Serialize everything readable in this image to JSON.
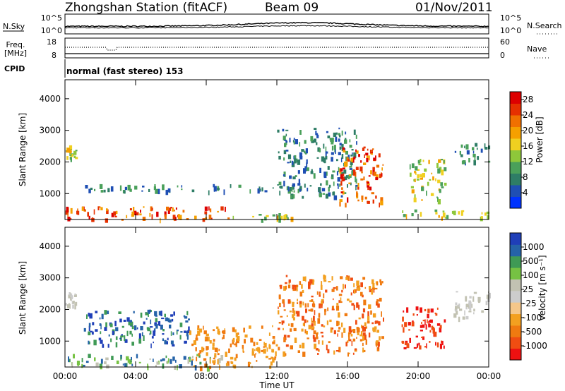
{
  "header": {
    "title": "Zhongshan Station (fitACF)",
    "beam": "Beam 09",
    "date": "01/Nov/2011"
  },
  "panels": {
    "nsky_label": "N.Sky",
    "nsearch_label": "N.Search",
    "noise_ticks": [
      "10^5",
      "10^0"
    ],
    "freq_label_1": "Freq.",
    "freq_label_2": "[MHz]",
    "freq_ticks": [
      "18",
      "8"
    ],
    "nave_label": "Nave",
    "nave_ticks": [
      "60",
      "0"
    ],
    "cpid_label": "CPID",
    "cpid_text": "normal (fast stereo) 153"
  },
  "colors": {
    "power": [
      "#0033ff",
      "#1f4fb4",
      "#2e7d66",
      "#4aa05a",
      "#8ec73a",
      "#f0d020",
      "#f5a000",
      "#f07000",
      "#e63000",
      "#dd0000"
    ],
    "velocity": [
      "#ee1111",
      "#f04d12",
      "#f07a10",
      "#f3a020",
      "#f5c78a",
      "#cccccc",
      "#c2c2b2",
      "#76c243",
      "#3f9a55",
      "#2563a8",
      "#1f3fb8"
    ]
  },
  "chart_data": [
    {
      "type": "heatmap",
      "title": "",
      "xlabel": "",
      "ylabel": "Slant Range [km]",
      "ylim": [
        180,
        4600
      ],
      "xlim": [
        "00:00",
        "24:00"
      ],
      "y_ticks": [
        1000,
        2000,
        3000,
        4000
      ],
      "colorbar": {
        "label": "Power [dB]",
        "ticks": [
          4,
          8,
          12,
          16,
          20,
          24,
          28
        ],
        "range": [
          0,
          30
        ]
      },
      "echo_regions": [
        {
          "t_start": 0.0,
          "t_end": 9.5,
          "range_km": [
            200,
            600
          ],
          "level": "high"
        },
        {
          "t_start": 9.5,
          "t_end": 13.0,
          "range_km": [
            200,
            400
          ],
          "level": "medium"
        },
        {
          "t_start": 0.0,
          "t_end": 0.6,
          "range_km": [
            2150,
            2550
          ],
          "level": "medium"
        },
        {
          "t_start": 1.0,
          "t_end": 13.5,
          "range_km": [
            1100,
            1300
          ],
          "level": "low"
        },
        {
          "t_start": 12.0,
          "t_end": 16.5,
          "range_km": [
            900,
            3100
          ],
          "level": "low"
        },
        {
          "t_start": 15.5,
          "t_end": 18.0,
          "range_km": [
            700,
            2500
          ],
          "level": "high"
        },
        {
          "t_start": 19.0,
          "t_end": 24.0,
          "range_km": [
            250,
            500
          ],
          "level": "medium"
        },
        {
          "t_start": 19.5,
          "t_end": 21.5,
          "range_km": [
            800,
            2100
          ],
          "level": "medium"
        },
        {
          "t_start": 22.0,
          "t_end": 24.0,
          "range_km": [
            2000,
            2600
          ],
          "level": "low"
        }
      ]
    },
    {
      "type": "heatmap",
      "title": "",
      "xlabel": "Time UT",
      "ylabel": "Slant Range [km]",
      "ylim": [
        180,
        4600
      ],
      "xlim": [
        "00:00",
        "24:00"
      ],
      "x_ticks": [
        "00:00",
        "04:00",
        "08:00",
        "12:00",
        "16:00",
        "20:00",
        "00:00"
      ],
      "y_ticks": [
        1000,
        2000,
        3000,
        4000
      ],
      "colorbar": {
        "label": "Velocity [m s⁻¹]",
        "ticks": [
          "1000",
          "500",
          "100",
          "25",
          "-25",
          "-100",
          "-500",
          "-1000"
        ]
      },
      "echo_regions": [
        {
          "t_start": 0.0,
          "t_end": 9.0,
          "range_km": [
            200,
            600
          ],
          "level": "green-blue"
        },
        {
          "t_start": 0.0,
          "t_end": 0.6,
          "range_km": [
            2150,
            2550
          ],
          "level": "gray"
        },
        {
          "t_start": 1.0,
          "t_end": 7.0,
          "range_km": [
            900,
            2000
          ],
          "level": "blue"
        },
        {
          "t_start": 7.0,
          "t_end": 12.0,
          "range_km": [
            200,
            1500
          ],
          "level": "orange"
        },
        {
          "t_start": 12.0,
          "t_end": 18.0,
          "range_km": [
            600,
            3100
          ],
          "level": "orange-red"
        },
        {
          "t_start": 19.0,
          "t_end": 21.5,
          "range_km": [
            800,
            2100
          ],
          "level": "red"
        },
        {
          "t_start": 22.0,
          "t_end": 24.0,
          "range_km": [
            1700,
            2600
          ],
          "level": "gray"
        }
      ]
    }
  ]
}
